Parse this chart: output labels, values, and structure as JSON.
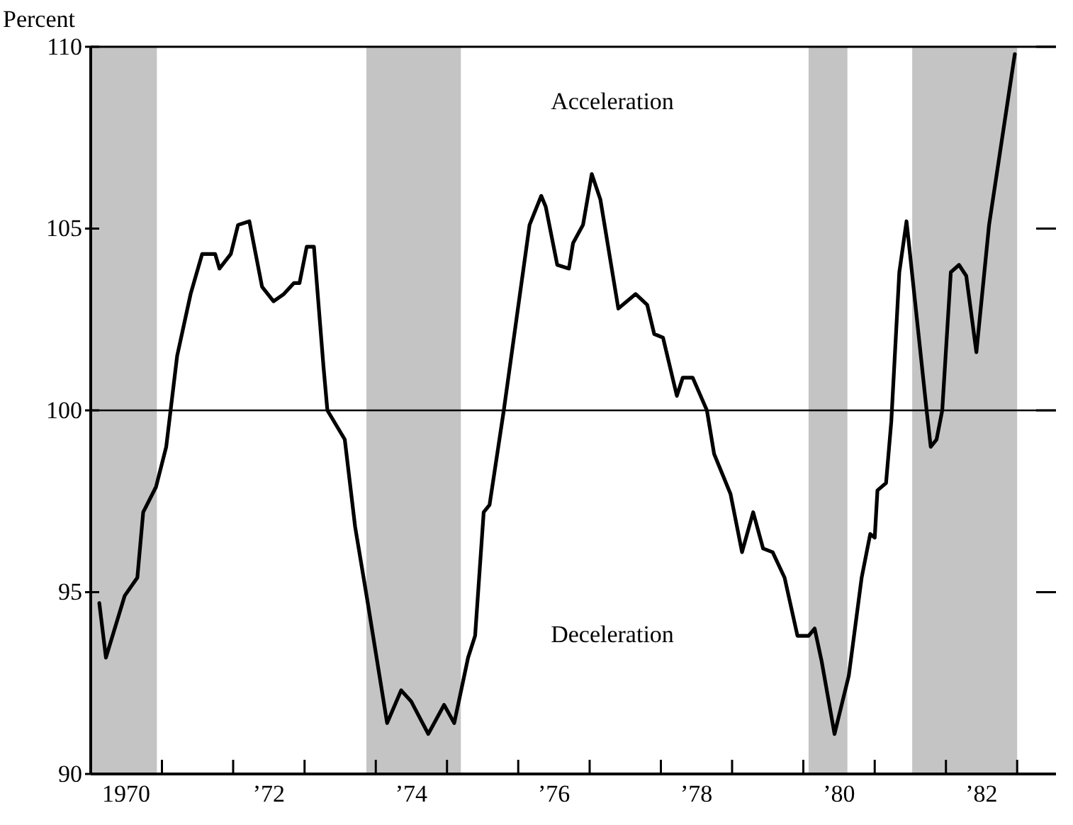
{
  "chart_data": {
    "type": "line",
    "ylabel": "Percent",
    "annotations": [
      "Acceleration",
      "Deceleration"
    ],
    "x": [
      "1970-02-14",
      "1970-03-20",
      "1970-06-24",
      "1970-08-28",
      "1970-09-27",
      "1970-12-02",
      "1971-01-23",
      "1971-03-20",
      "1971-05-28",
      "1971-07-26",
      "1971-10-01",
      "1971-10-23",
      "1971-12-20",
      "1972-01-26",
      "1972-03-24",
      "1972-05-28",
      "1972-07-26",
      "1972-09-17",
      "1972-11-07",
      "1972-12-06",
      "1973-01-12",
      "1973-02-18",
      "1973-04-08",
      "1973-04-28",
      "1973-07-26",
      "1973-09-17",
      "1973-11-18",
      "1974-02-28",
      "1974-05-11",
      "1974-07-01",
      "1974-09-27",
      "1974-12-17",
      "1975-02-07",
      "1975-04-19",
      "1975-05-25",
      "1975-07-08",
      "1975-08-07",
      "1975-10-19",
      "1976-02-28",
      "1976-04-28",
      "1976-05-21",
      "1976-07-19",
      "1976-09-17",
      "1976-10-08",
      "1976-11-28",
      "1977-01-12",
      "1977-02-25",
      "1977-05-28",
      "1977-08-25",
      "1977-10-23",
      "1977-11-28",
      "1978-01-12",
      "1978-03-24",
      "1978-04-23",
      "1978-06-13",
      "1978-08-25",
      "1978-10-01",
      "1978-12-24",
      "1979-02-21",
      "1979-04-19",
      "1979-06-09",
      "1979-07-28",
      "1979-09-27",
      "1979-12-02",
      "1980-01-28",
      "1980-02-28",
      "1980-04-04",
      "1980-06-09",
      "1980-08-21",
      "1980-10-26",
      "1980-12-09",
      "1981-01-01",
      "1981-01-15",
      "1981-02-28",
      "1981-03-27",
      "1981-05-07",
      "1981-06-13",
      "1981-09-24",
      "1981-10-15",
      "1981-11-14",
      "1981-12-13",
      "1982-01-26",
      "1982-03-09",
      "1982-04-15",
      "1982-06-06",
      "1982-08-10",
      "1982-12-20"
    ],
    "series": [
      {
        "color": "#000000",
        "values": [
          94.7,
          93.2,
          94.9,
          95.4,
          97.2,
          97.9,
          99.0,
          101.5,
          103.2,
          104.3,
          104.3,
          103.9,
          104.3,
          105.1,
          105.2,
          103.4,
          103.0,
          103.2,
          103.5,
          103.5,
          104.5,
          104.5,
          101.2,
          100.0,
          99.2,
          96.8,
          94.8,
          91.4,
          92.3,
          92.0,
          91.1,
          91.9,
          91.4,
          93.2,
          93.8,
          97.2,
          97.4,
          100.0,
          105.1,
          105.9,
          105.6,
          104.0,
          103.9,
          104.6,
          105.1,
          106.5,
          105.8,
          102.8,
          103.2,
          102.9,
          102.1,
          102.0,
          100.4,
          100.9,
          100.9,
          100.0,
          98.8,
          97.7,
          96.1,
          97.2,
          96.2,
          96.1,
          95.4,
          93.8,
          93.8,
          94.0,
          93.1,
          91.1,
          92.7,
          95.4,
          96.6,
          96.5,
          97.8,
          98.0,
          99.7,
          103.8,
          105.2,
          100.0,
          99.0,
          99.2,
          100.0,
          103.8,
          104.0,
          103.7,
          101.6,
          105.1,
          109.8
        ]
      }
    ],
    "xlim": [
      "1970-01-01",
      "1983-07-19"
    ],
    "xticks": [
      {
        "value": "1970-07-02",
        "label": "1970"
      },
      {
        "value": "1972-07-02",
        "label": "’72"
      },
      {
        "value": "1974-07-02",
        "label": "’74"
      },
      {
        "value": "1976-07-02",
        "label": "’76"
      },
      {
        "value": "1978-07-02",
        "label": "’78"
      },
      {
        "value": "1980-07-02",
        "label": "’80"
      },
      {
        "value": "1982-07-02",
        "label": "’82"
      },
      {
        "value": "1971",
        "label": null
      },
      {
        "value": "1972",
        "label": null
      },
      {
        "value": "1973",
        "label": null
      },
      {
        "value": "1974",
        "label": null
      },
      {
        "value": "1975",
        "label": null
      },
      {
        "value": "1976",
        "label": null
      },
      {
        "value": "1977",
        "label": null
      },
      {
        "value": "1978",
        "label": null
      },
      {
        "value": "1979",
        "label": null
      },
      {
        "value": "1980",
        "label": null
      },
      {
        "value": "1981",
        "label": null
      },
      {
        "value": "1982",
        "label": null
      },
      {
        "value": "1983",
        "label": null
      }
    ],
    "ylim": [
      90,
      110
    ],
    "yticks": [
      90,
      95,
      100,
      105,
      110
    ],
    "ref_lines": [
      {
        "axis": "y",
        "value": 100,
        "color": "#000000"
      }
    ],
    "bands": [
      {
        "axis": "x",
        "from": "1970-01-01",
        "to": "1970-12-06",
        "color": "#c4c4c4"
      },
      {
        "axis": "x",
        "from": "1973-11-14",
        "to": "1975-03-13",
        "color": "#c4c4c4"
      },
      {
        "axis": "x",
        "from": "1980-01-28",
        "to": "1980-08-14",
        "color": "#c4c4c4"
      },
      {
        "axis": "x",
        "from": "1981-07-12",
        "to": "1983-01-01",
        "color": "#c4c4c4"
      }
    ],
    "grid": false,
    "line_style": "solid"
  }
}
